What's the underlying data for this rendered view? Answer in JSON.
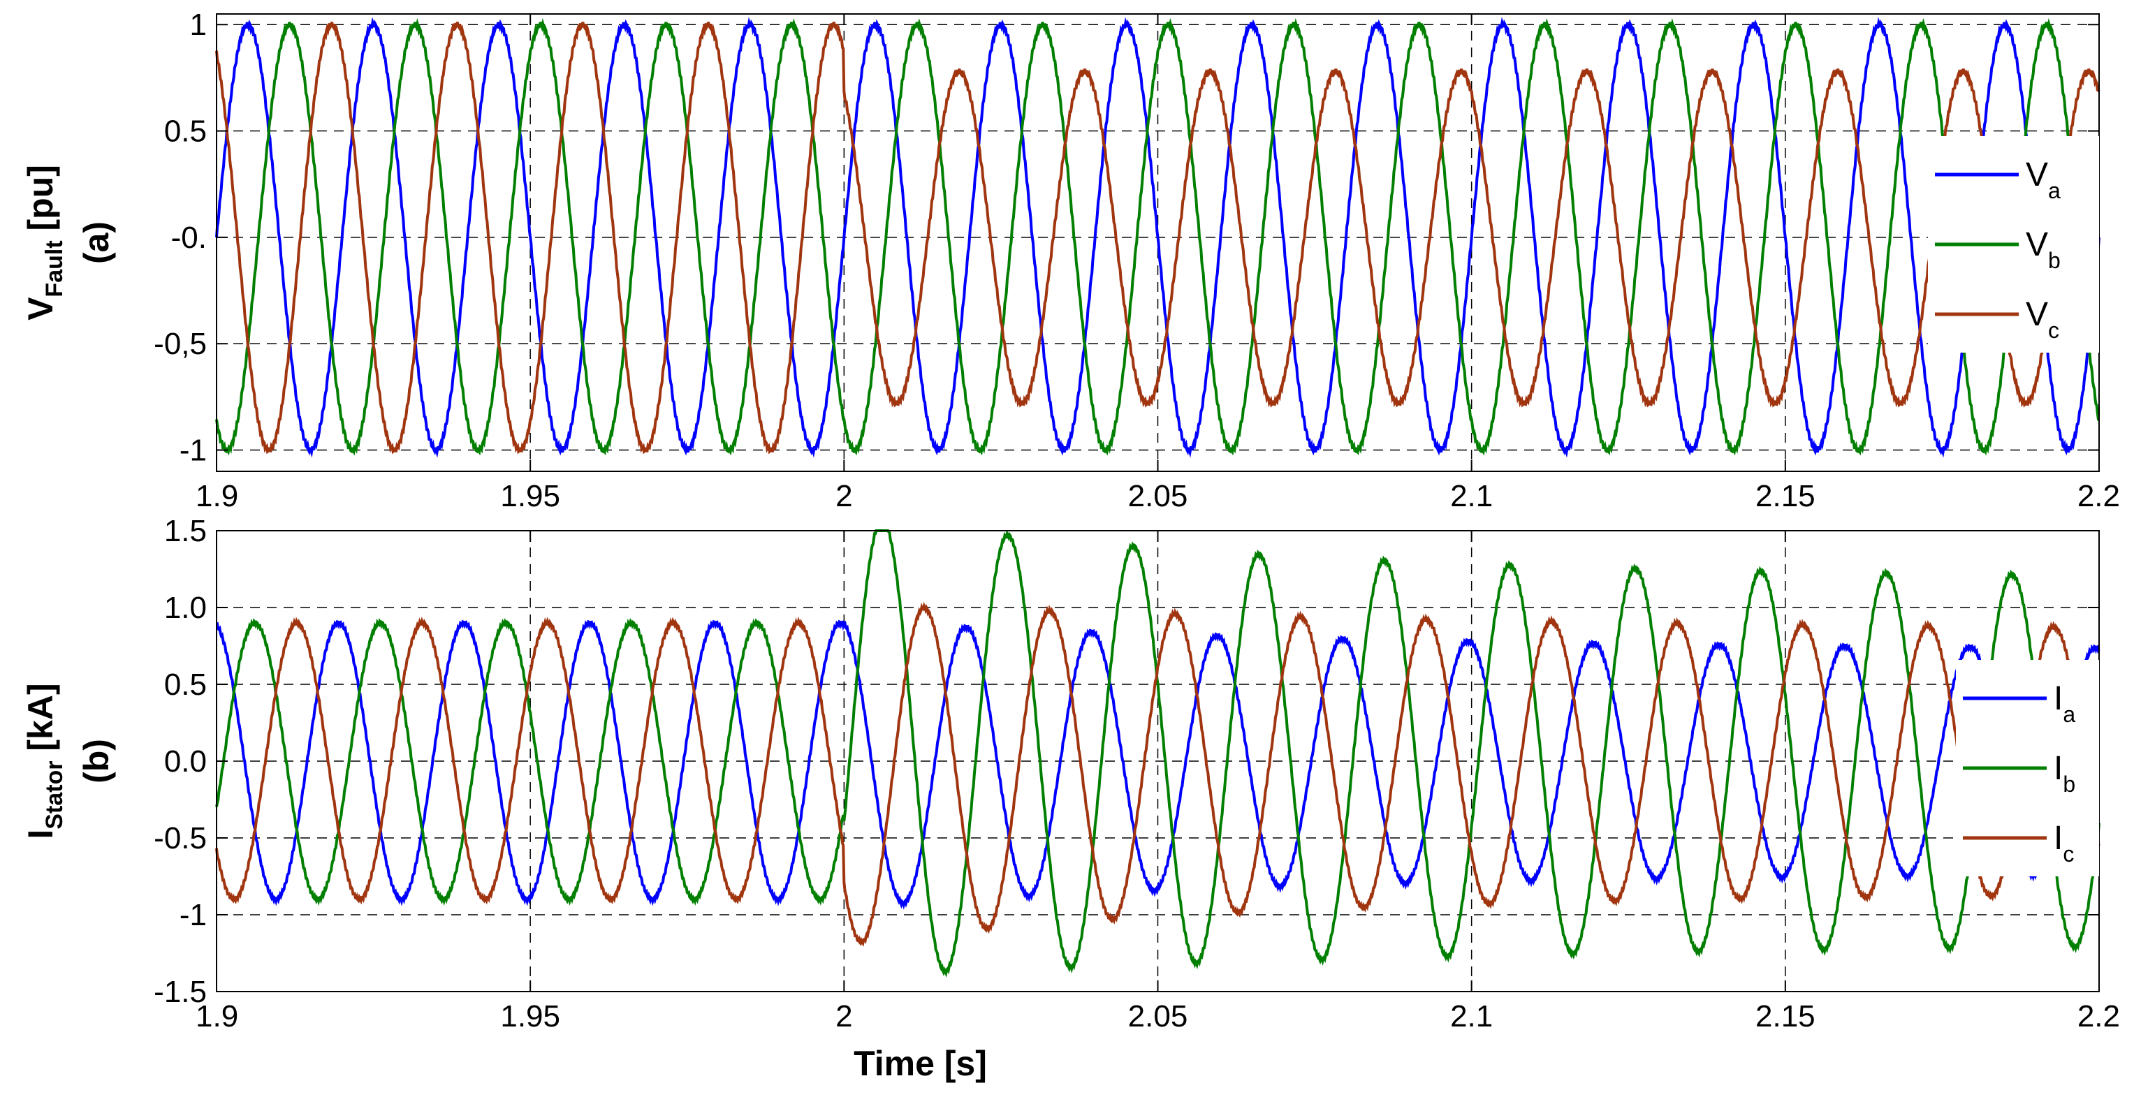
{
  "chart_data": [
    {
      "id": "a",
      "type": "line",
      "ylabel_main": "V",
      "ylabel_sub": "Fault",
      "ylabel_unit": "[pu]",
      "panel_label": "(a)",
      "xlim": [
        1.9,
        2.2
      ],
      "ylim": [
        -1.1,
        1.05
      ],
      "xticks": [
        1.9,
        1.95,
        2.0,
        2.05,
        2.1,
        2.15,
        2.2
      ],
      "xtick_labels": [
        "1.9",
        "1.95",
        "2",
        "2.05",
        "2.1",
        "2.15",
        "2.2"
      ],
      "yticks": [
        1,
        0.5,
        0,
        -0.5,
        -1
      ],
      "ytick_labels": [
        "1",
        "0.5",
        "-0.",
        "-0,5",
        "-1"
      ],
      "grid": true,
      "legend_position": "right",
      "frequency_hz": 50,
      "fault_time_s": 2.0,
      "series": [
        {
          "name": "V",
          "sub": "a",
          "color": "#0000ff",
          "amplitude_pre": 1.0,
          "amplitude_post": 1.0,
          "phase_deg": 0
        },
        {
          "name": "V",
          "sub": "b",
          "color": "#007f00",
          "amplitude_pre": 1.0,
          "amplitude_post": 1.0,
          "phase_deg": -120
        },
        {
          "name": "V",
          "sub": "c",
          "color": "#a0350f",
          "amplitude_pre": 1.0,
          "amplitude_post": 0.78,
          "phase_deg": 120
        }
      ]
    },
    {
      "id": "b",
      "type": "line",
      "ylabel_main": "I",
      "ylabel_sub": "Stator",
      "ylabel_unit": "[kA]",
      "panel_label": "(b)",
      "xlabel": "Time [s]",
      "xlim": [
        1.9,
        2.2
      ],
      "ylim": [
        -1.5,
        1.5
      ],
      "xticks": [
        1.9,
        1.95,
        2.0,
        2.05,
        2.1,
        2.15,
        2.2
      ],
      "xtick_labels": [
        "1.9",
        "1.95",
        "2",
        "2.05",
        "2.1",
        "2.15",
        "2.2"
      ],
      "yticks": [
        1.5,
        1.0,
        0.5,
        0.0,
        -0.5,
        -1,
        -1.5
      ],
      "ytick_labels": [
        "1.5",
        "1.0",
        "0.5",
        "0.0",
        "-0.5",
        "-1",
        "-1.5"
      ],
      "grid": true,
      "legend_position": "right",
      "frequency_hz": 50,
      "fault_time_s": 2.0,
      "series": [
        {
          "name": "I",
          "sub": "a",
          "color": "#0000ff",
          "amplitude_pre": 0.9,
          "peak_first_post": 0.93,
          "amplitude_final": 0.72,
          "phase_deg": 100
        },
        {
          "name": "I",
          "sub": "b",
          "color": "#007f00",
          "amplitude_pre": 0.9,
          "peak_first_post": 1.5,
          "amplitude_final": 1.18,
          "phase_deg": -20
        },
        {
          "name": "I",
          "sub": "c",
          "color": "#a0350f",
          "amplitude_pre": 0.9,
          "peak_first_post": 1.1,
          "amplitude_final": 0.85,
          "phase_deg": 220
        }
      ]
    }
  ]
}
